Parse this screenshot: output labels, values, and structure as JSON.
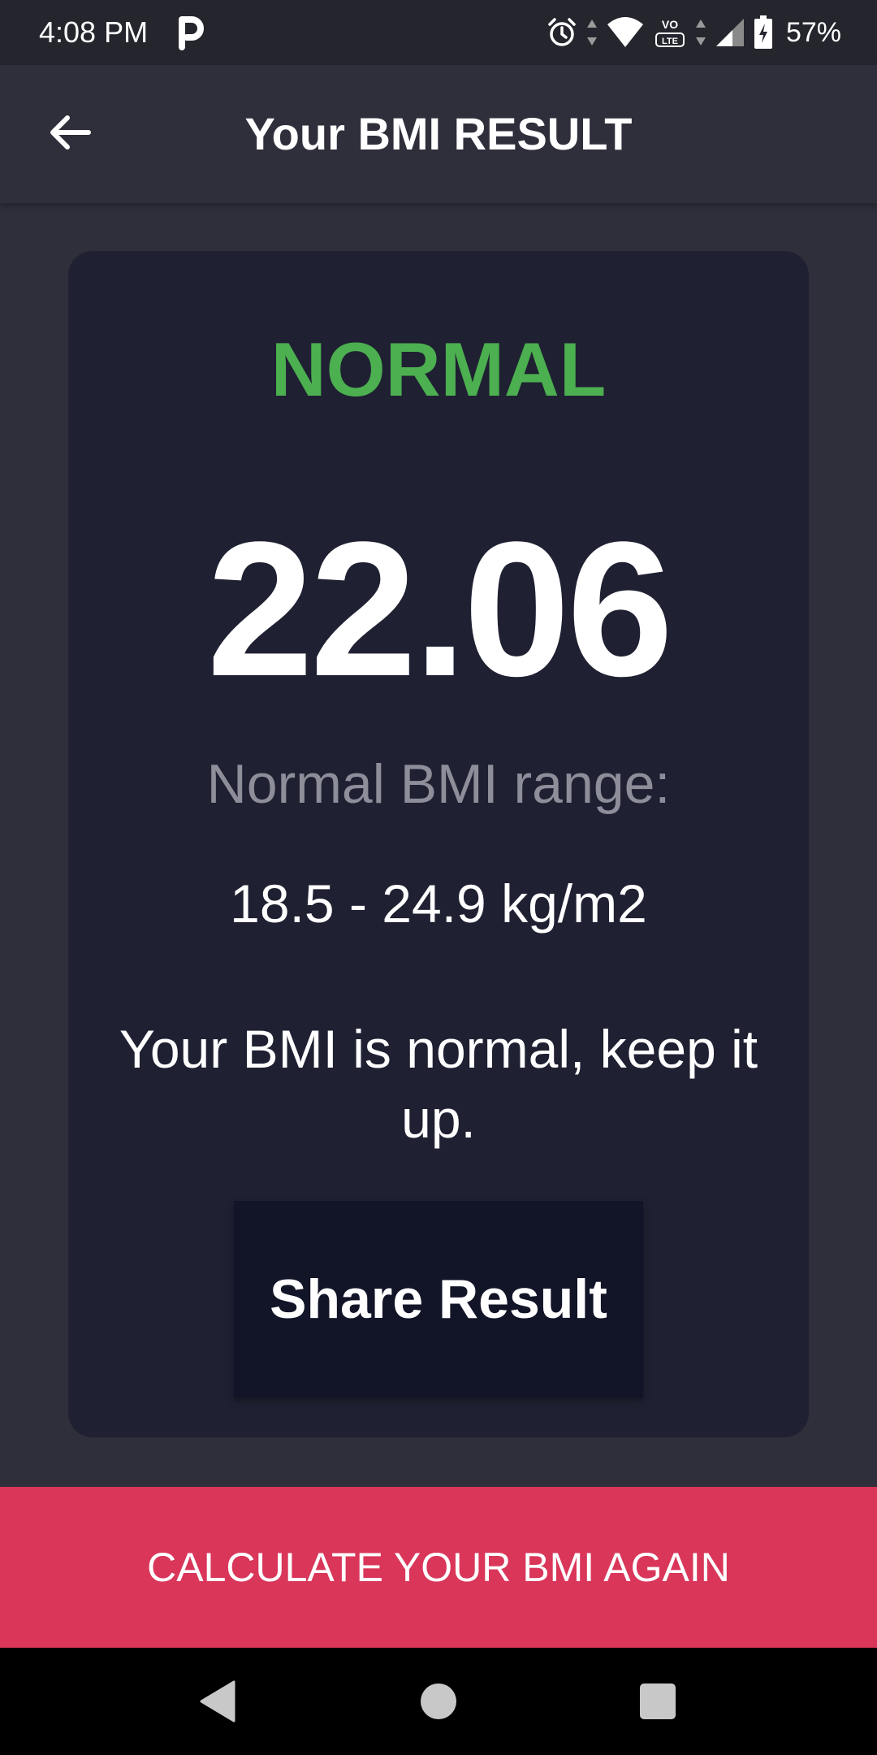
{
  "status_bar": {
    "time": "4:08 PM",
    "battery_percent": "57%",
    "icons": [
      "parking-app-icon",
      "alarm-icon",
      "wifi-icon",
      "volte-icon",
      "cell-signal-icon",
      "battery-charging-icon"
    ]
  },
  "app_bar": {
    "title": "Your BMI RESULT",
    "back_icon": "arrow-left-icon"
  },
  "result": {
    "category": "NORMAL",
    "category_color": "#4caf50",
    "bmi": "22.06",
    "range_label": "Normal BMI range:",
    "range_value": "18.5 - 24.9 kg/m2",
    "advice": "Your BMI is normal, keep it up.",
    "share_label": "Share Result"
  },
  "bottom": {
    "recalculate_label": "CALCULATE YOUR BMI AGAIN",
    "accent_color": "#d9365a"
  },
  "nav_bar": {
    "icons": [
      "back-triangle-icon",
      "home-circle-icon",
      "recents-square-icon"
    ]
  }
}
